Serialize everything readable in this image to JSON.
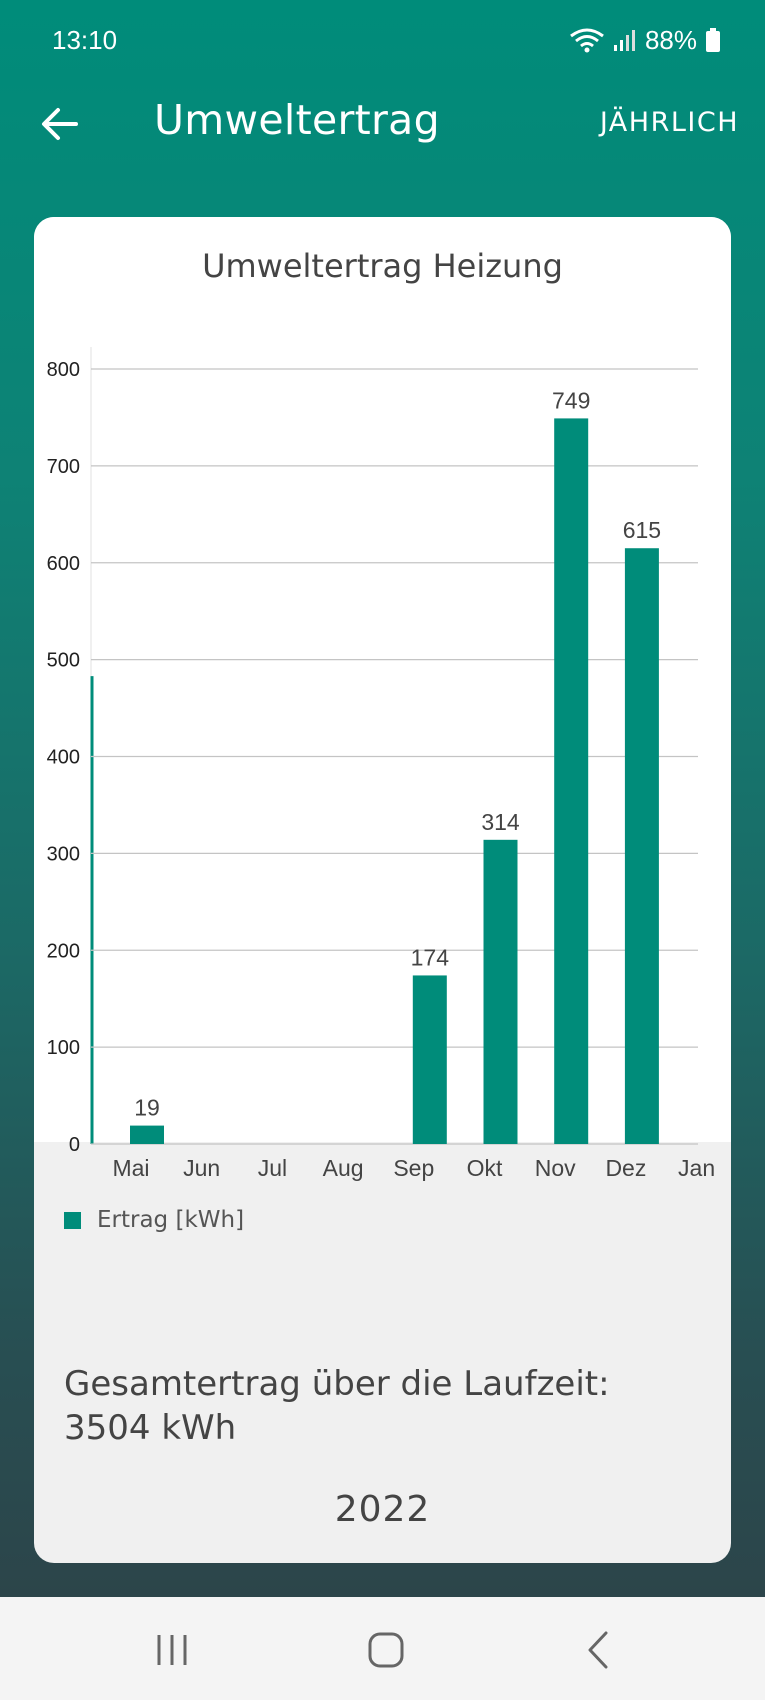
{
  "status_bar": {
    "time": "13:10",
    "battery": "88%",
    "icons": [
      "wifi-icon",
      "signal-icon",
      "battery-icon"
    ]
  },
  "app_bar": {
    "title": "Umweltertrag",
    "period_button": "JÄHRLICH",
    "back_icon": "arrow-left-icon"
  },
  "card": {
    "title": "Umweltertrag Heizung",
    "legend": "Ertrag [kWh]",
    "total_label": "Gesamtertrag über die Laufzeit:",
    "total_value": "3504 kWh",
    "year": "2022"
  },
  "chart_data": {
    "type": "bar",
    "categories": [
      "Mai",
      "Jun",
      "Jul",
      "Aug",
      "Sep",
      "Okt",
      "Nov",
      "Dez",
      "Jan"
    ],
    "series": [
      {
        "name": "Ertrag [kWh]",
        "values": [
          19,
          null,
          null,
          null,
          174,
          314,
          749,
          615,
          null
        ],
        "color": "#008c7a"
      }
    ],
    "ylim": [
      0,
      800
    ],
    "yticks": [
      0,
      100,
      200,
      300,
      400,
      500,
      600,
      700,
      800
    ],
    "data_labels": [
      "19",
      "",
      "",
      "",
      "174",
      "314",
      "749",
      "615",
      ""
    ],
    "grid": true,
    "legend_position": "bottom-left"
  },
  "nav_bar": {
    "icons": [
      "recent-apps-icon",
      "home-icon",
      "back-icon"
    ]
  },
  "colors": {
    "accent": "#008c7a",
    "card_bg": "#ffffff",
    "card_footer_bg": "#f0f0f0"
  }
}
